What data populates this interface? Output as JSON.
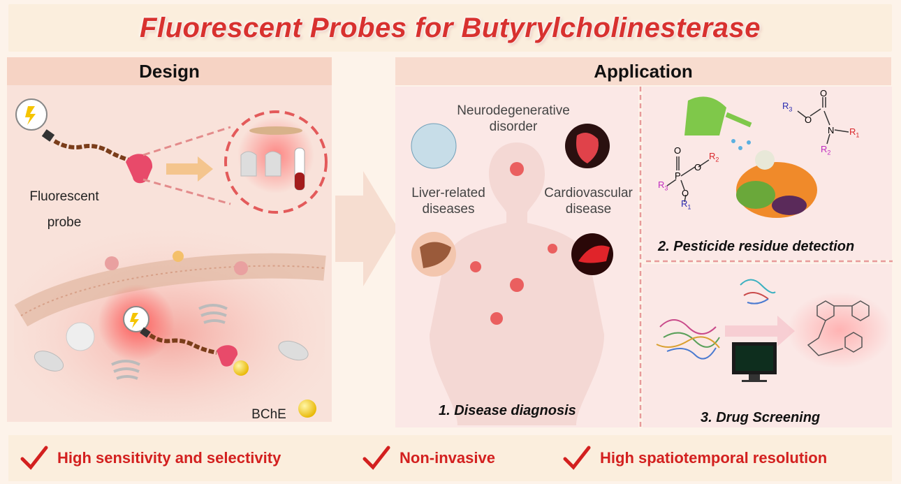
{
  "title": "Fluorescent Probes for Butyrylcholinesterase",
  "design": {
    "header": "Design",
    "probe_label_line1": "Fluorescent",
    "probe_label_line2": "probe",
    "bche_label": "BChE"
  },
  "application": {
    "header": "Application",
    "neuro_line1": "Neurodegenerative",
    "neuro_line2": "disorder",
    "liver_line1": "Liver-related",
    "liver_line2": "diseases",
    "cardio_line1": "Cardiovascular",
    "cardio_line2": "disease",
    "disease_caption": "1. Disease diagnosis",
    "pesticide_caption": "2. Pesticide residue detection",
    "drug_caption": "3. Drug Screening",
    "chem": {
      "r1": "R",
      "r1_sub": "1",
      "r2": "R",
      "r2_sub": "2",
      "r3": "R",
      "r3_sub": "3",
      "o": "O",
      "p": "P",
      "n": "N"
    }
  },
  "features": [
    {
      "label": "High sensitivity and selectivity",
      "icon": "checkmark-icon"
    },
    {
      "label": "Non-invasive",
      "icon": "checkmark-icon"
    },
    {
      "label": "High spatiotemporal resolution",
      "icon": "checkmark-icon"
    }
  ],
  "colors": {
    "title_red": "#d8312f",
    "feature_red": "#d3201f",
    "probe_pink": "#e84a6a",
    "chain_brown": "#7a3d1a",
    "r1_red": "#d9262a",
    "r2_magenta": "#c02cc0",
    "r3_blue": "#2a2ab0"
  }
}
